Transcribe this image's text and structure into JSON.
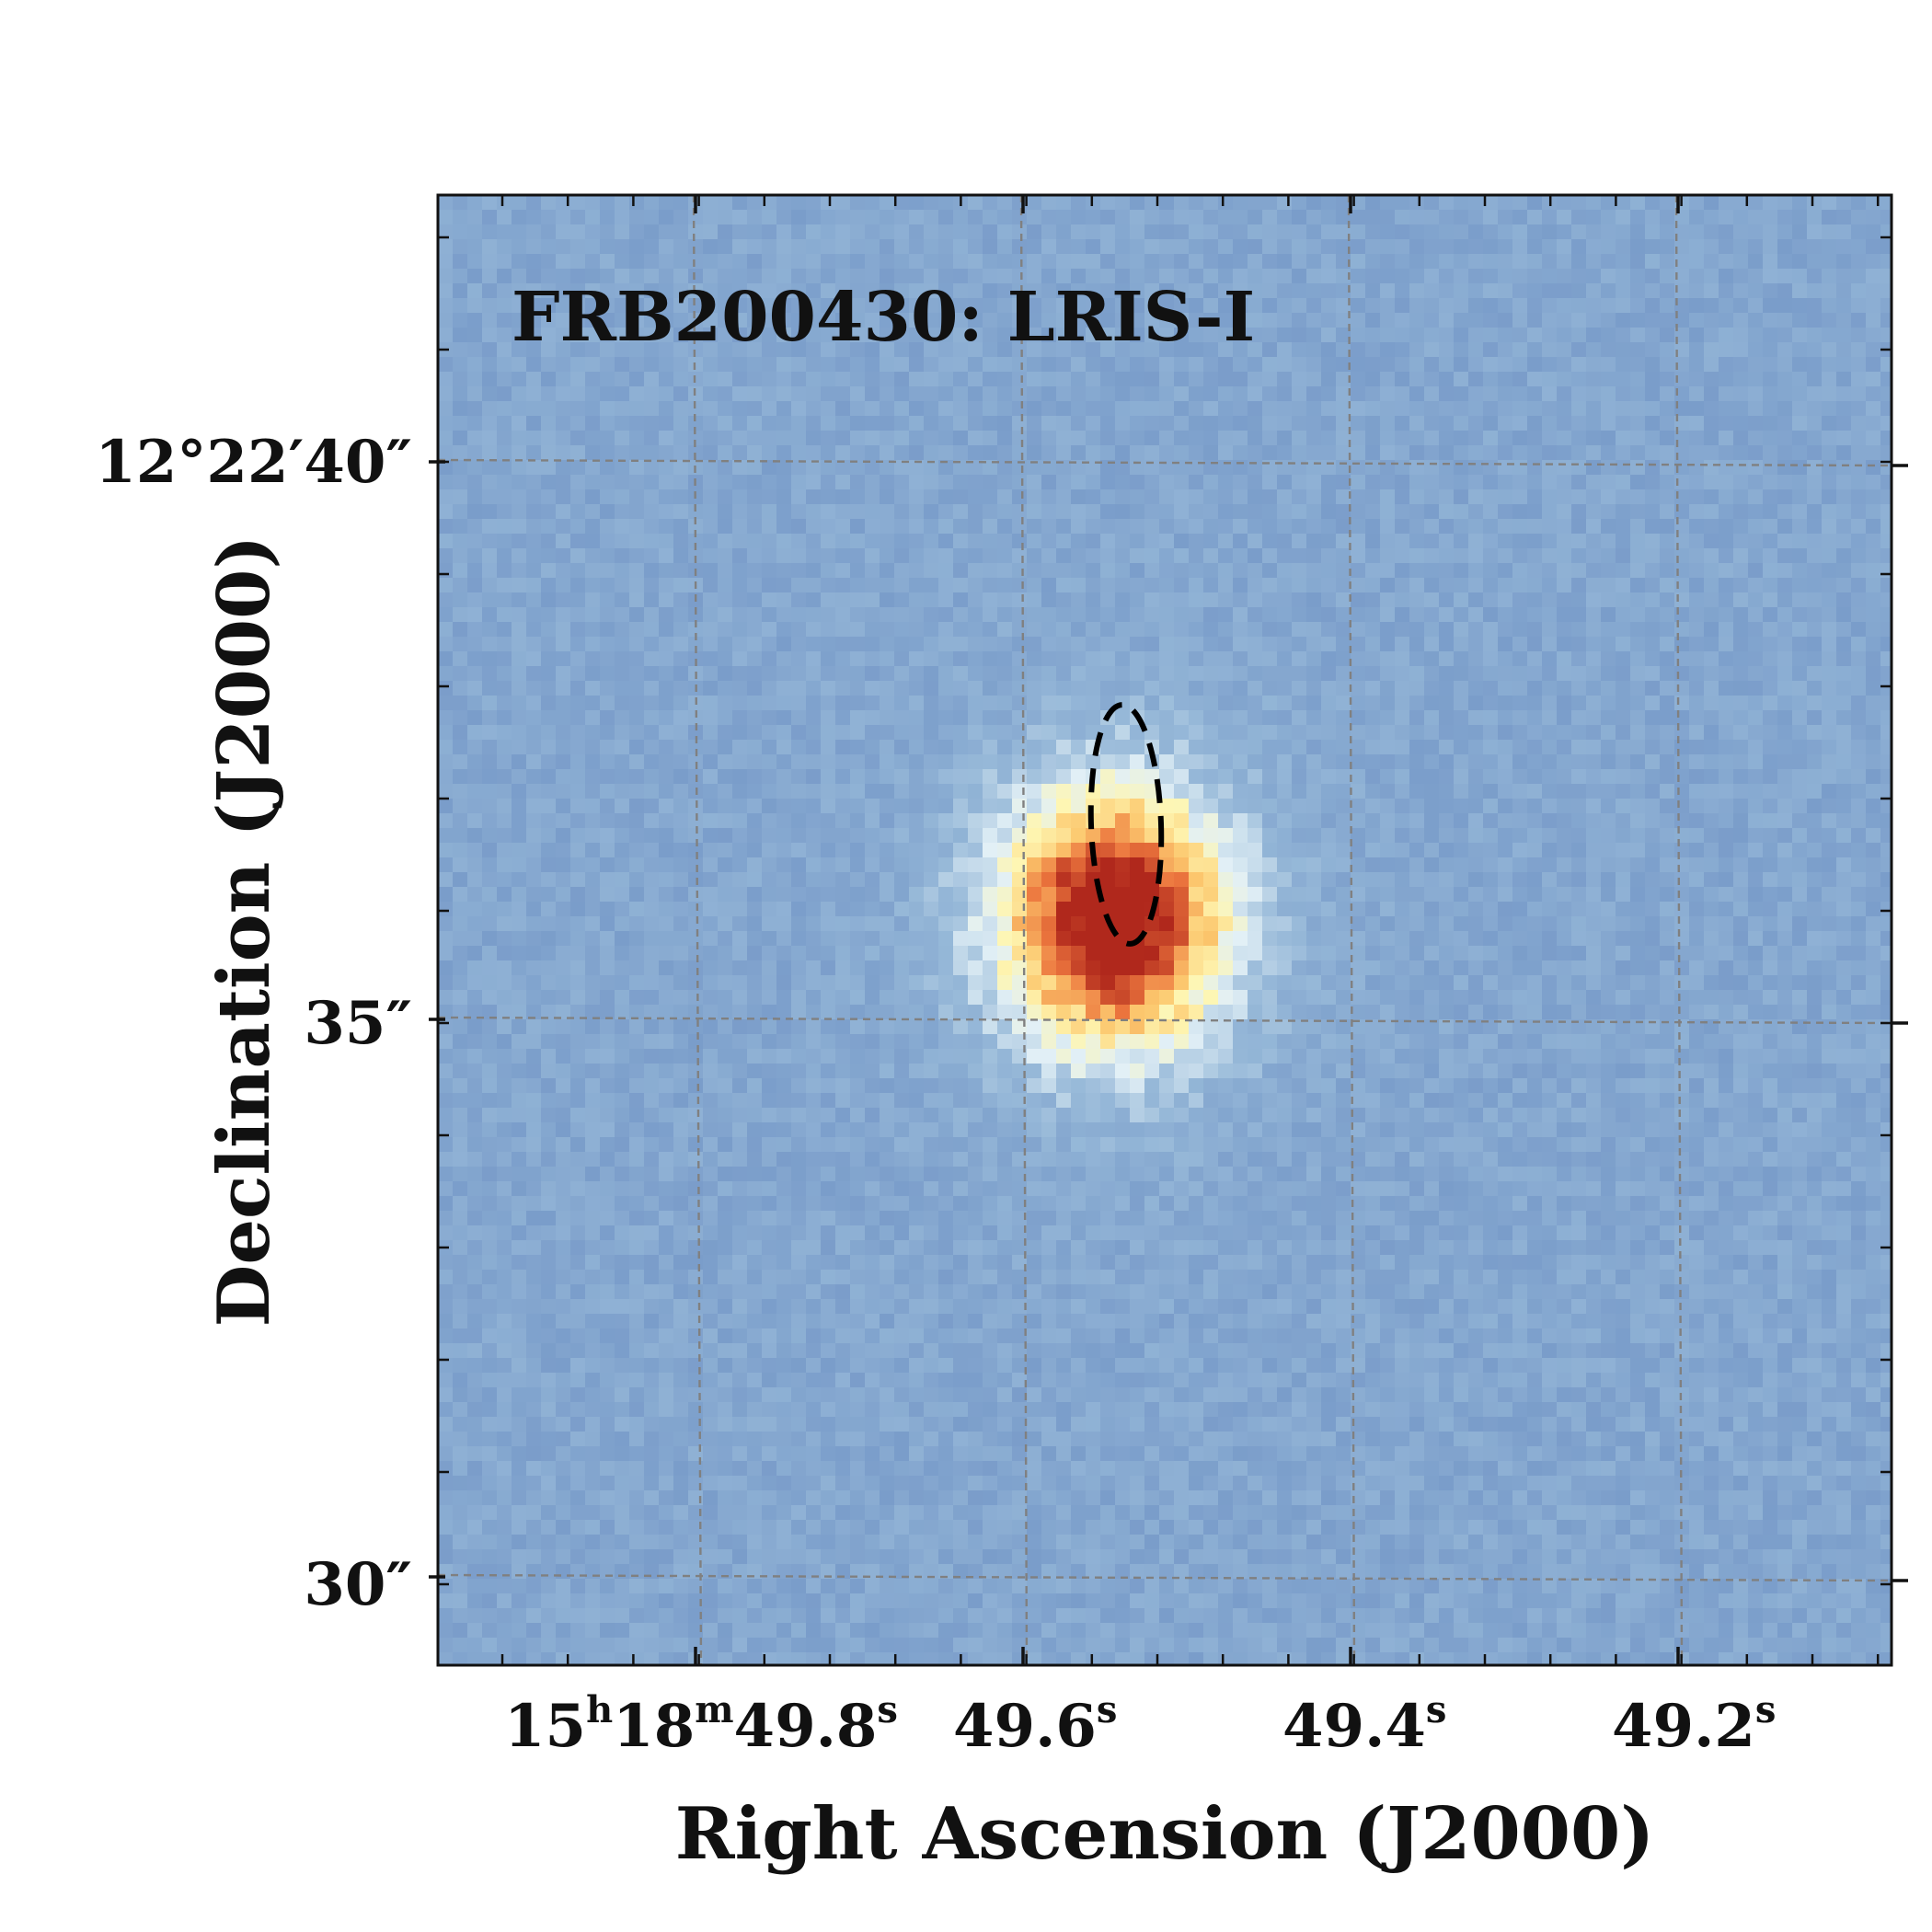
{
  "figure": {
    "title": "FRB200430:  LRIS-I",
    "xlabel": "Right Ascension (J2000)",
    "ylabel": "Declination (J2000)",
    "x_ticks": [
      {
        "main": "15",
        "sup1": "h",
        "mid": "18",
        "sup2": "m",
        "tail": "49.8",
        "sup3": "s"
      },
      {
        "main": "49.6",
        "sup1": "s"
      },
      {
        "main": "49.4",
        "sup1": "s"
      },
      {
        "main": "49.2",
        "sup1": "s"
      }
    ],
    "y_ticks": [
      {
        "label": "12°22′40″"
      },
      {
        "label": "35″"
      },
      {
        "label": "30″"
      }
    ],
    "colormap": "RdYlBu_r",
    "grid": true,
    "grid_style": "dashed",
    "localization_ellipse": {
      "style": "dashed",
      "color": "#000000"
    },
    "colors": {
      "background_low": "#7f9fc9",
      "background_high": "#a9c4de",
      "peak": "#b8351f"
    }
  }
}
